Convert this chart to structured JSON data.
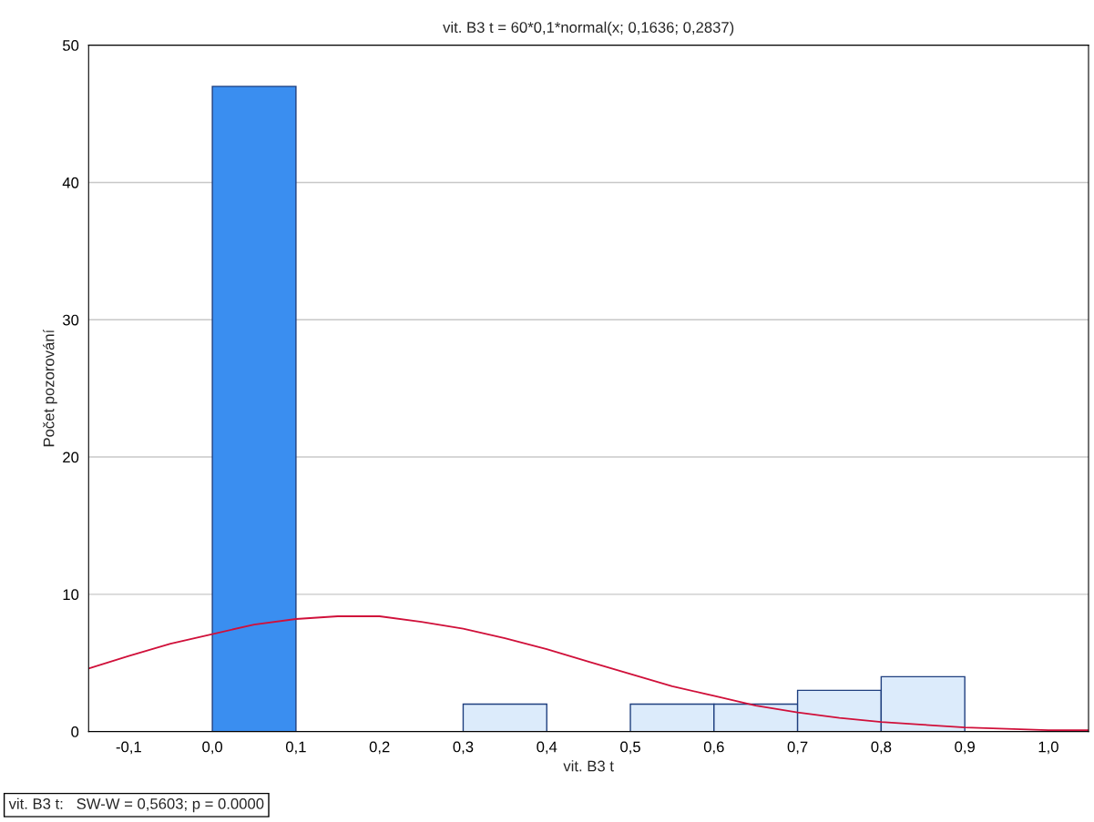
{
  "chart_data": {
    "type": "histogram",
    "title": "vit. B3 t = 60*0,1*normal(x; 0,1636; 0,2837)",
    "xlabel": "vit. B3 t",
    "ylabel": "Počet pozorování",
    "bins": [
      0.0,
      0.1,
      0.2,
      0.3,
      0.4,
      0.5,
      0.6,
      0.7,
      0.8,
      0.9
    ],
    "values": [
      47,
      0,
      0,
      2,
      0,
      2,
      2,
      3,
      4
    ],
    "colors": [
      "#3a8ef0",
      "#dcebfb",
      "#dcebfb",
      "#dcebfb",
      "#dcebfb",
      "#dcebfb",
      "#dcebfb",
      "#dcebfb",
      "#dcebfb"
    ],
    "series": [
      {
        "type": "line",
        "color": "#d0103a",
        "x": [
          -0.148,
          -0.1,
          -0.05,
          0.0,
          0.05,
          0.1,
          0.15,
          0.2,
          0.25,
          0.3,
          0.35,
          0.4,
          0.45,
          0.5,
          0.55,
          0.6,
          0.65,
          0.7,
          0.75,
          0.8,
          0.85,
          0.9,
          0.95,
          1.0,
          1.048
        ],
        "values": [
          4.6,
          5.5,
          6.4,
          7.1,
          7.8,
          8.2,
          8.4,
          8.4,
          8.0,
          7.5,
          6.8,
          6.0,
          5.1,
          4.2,
          3.3,
          2.6,
          1.9,
          1.4,
          1.0,
          0.7,
          0.5,
          0.3,
          0.2,
          0.1,
          0.1
        ]
      }
    ],
    "xlim": [
      -0.148,
      1.048
    ],
    "xticks": [
      {
        "value": -0.1,
        "label": "-0,1"
      },
      {
        "value": 0.0,
        "label": "0,0"
      },
      {
        "value": 0.1,
        "label": "0,1"
      },
      {
        "value": 0.2,
        "label": "0,2"
      },
      {
        "value": 0.3,
        "label": "0,3"
      },
      {
        "value": 0.4,
        "label": "0,4"
      },
      {
        "value": 0.5,
        "label": "0,5"
      },
      {
        "value": 0.6,
        "label": "0,6"
      },
      {
        "value": 0.7,
        "label": "0,7"
      },
      {
        "value": 0.8,
        "label": "0,8"
      },
      {
        "value": 0.9,
        "label": "0,9"
      },
      {
        "value": 1.0,
        "label": "1,0"
      }
    ],
    "ylim": [
      0,
      50
    ],
    "yticks": [
      0,
      10,
      20,
      30,
      40,
      50
    ],
    "grid": "y",
    "annotations": [
      "vit. B3 t:   SW-W = 0,5603; p = 0.0000"
    ]
  }
}
